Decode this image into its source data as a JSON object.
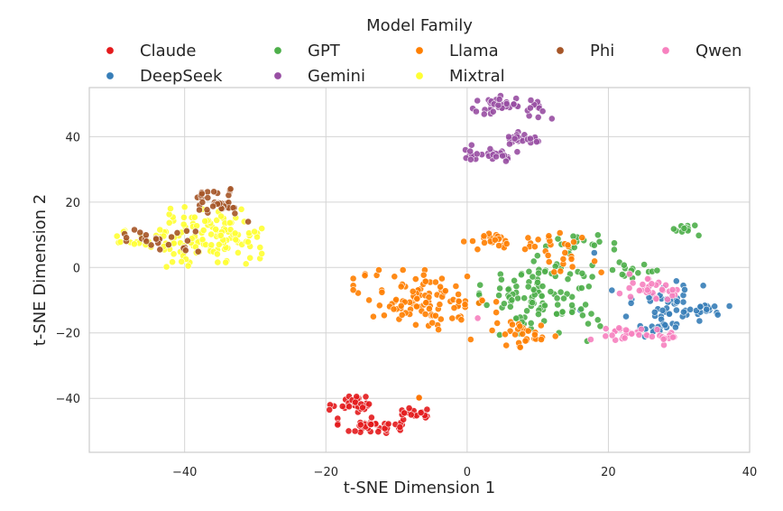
{
  "chart_data": {
    "type": "scatter",
    "title": "",
    "xlabel": "t-SNE Dimension 1",
    "ylabel": "t-SNE Dimension 2",
    "xlim": [
      -53.5,
      40
    ],
    "ylim": [
      -56.5,
      55
    ],
    "xticks": [
      -40,
      -20,
      0,
      20,
      40
    ],
    "yticks": [
      -40,
      -20,
      0,
      20,
      40
    ],
    "xtick_labels": [
      "−40",
      "−20",
      "0",
      "20",
      "40"
    ],
    "ytick_labels": [
      "−40",
      "−20",
      "0",
      "20",
      "40"
    ],
    "grid": true,
    "legend": {
      "title": "Model Family",
      "placement": "top"
    },
    "series": [
      {
        "name": "Claude",
        "color": "#e41a1c",
        "clusters": [
          {
            "cx": -16,
            "cy": -41.5,
            "sx": 1.6,
            "sy": 1.4,
            "n": 30
          },
          {
            "cx": -13.5,
            "cy": -48.5,
            "sx": 2.2,
            "sy": 1.2,
            "n": 40
          },
          {
            "cx": -7.5,
            "cy": -44.5,
            "sx": 1.4,
            "sy": 1.0,
            "n": 18
          }
        ],
        "points": [
          [
            -19.5,
            -43.5
          ],
          [
            -6.8,
            -39.8
          ],
          [
            -8.2,
            -43
          ]
        ]
      },
      {
        "name": "DeepSeek",
        "color": "#377eb8",
        "clusters": [
          {
            "cx": 28.5,
            "cy": -10.5,
            "sx": 2.4,
            "sy": 3.2,
            "n": 45
          },
          {
            "cx": 34.5,
            "cy": -12.5,
            "sx": 1.2,
            "sy": 0.9,
            "n": 14
          },
          {
            "cx": 27.5,
            "cy": -18.5,
            "sx": 2.0,
            "sy": 1.2,
            "n": 16
          }
        ],
        "points": [
          [
            18,
            4.5
          ],
          [
            20.5,
            -7
          ],
          [
            16,
            -13
          ],
          [
            22.5,
            -15
          ]
        ]
      },
      {
        "name": "GPT",
        "color": "#4daf4a",
        "clusters": [
          {
            "cx": 10.5,
            "cy": -8.5,
            "sx": 4.0,
            "sy": 5.5,
            "n": 110
          },
          {
            "cx": 16,
            "cy": 7,
            "sx": 2.2,
            "sy": 1.5,
            "n": 18
          },
          {
            "cx": 30.8,
            "cy": 12,
            "sx": 0.7,
            "sy": 0.8,
            "n": 12
          },
          {
            "cx": 23,
            "cy": -1,
            "sx": 2.4,
            "sy": 2.2,
            "n": 20
          }
        ],
        "points": [
          [
            32.8,
            9.8
          ],
          [
            17,
            -22.5
          ],
          [
            18.5,
            -16
          ],
          [
            13,
            -20
          ]
        ]
      },
      {
        "name": "Gemini",
        "color": "#984ea3",
        "clusters": [
          {
            "cx": 4.5,
            "cy": 49.5,
            "sx": 2.0,
            "sy": 1.6,
            "n": 30
          },
          {
            "cx": 9.5,
            "cy": 48.5,
            "sx": 1.0,
            "sy": 1.2,
            "n": 12
          },
          {
            "cx": 3,
            "cy": 35,
            "sx": 2.2,
            "sy": 1.1,
            "n": 28
          },
          {
            "cx": 8.5,
            "cy": 39.5,
            "sx": 1.6,
            "sy": 1.0,
            "n": 22
          }
        ],
        "points": [
          [
            12,
            45.5
          ],
          [
            0.5,
            33
          ],
          [
            5.5,
            32.5
          ]
        ]
      },
      {
        "name": "Llama",
        "color": "#ff7f00",
        "clusters": [
          {
            "cx": -6,
            "cy": -10,
            "sx": 4.6,
            "sy": 4.2,
            "n": 110
          },
          {
            "cx": 3.5,
            "cy": 8,
            "sx": 1.8,
            "sy": 1.5,
            "n": 22
          },
          {
            "cx": 8,
            "cy": -20,
            "sx": 2.4,
            "sy": 2.0,
            "n": 28
          },
          {
            "cx": 11,
            "cy": 7.5,
            "sx": 2.4,
            "sy": 1.6,
            "n": 16
          },
          {
            "cx": 14,
            "cy": 3,
            "sx": 2.2,
            "sy": 2.2,
            "n": 12
          }
        ],
        "points": [
          [
            -6.8,
            -39.8
          ],
          [
            10.5,
            -22
          ],
          [
            12.5,
            -21
          ],
          [
            0.5,
            -22
          ],
          [
            19,
            -1.5
          ]
        ]
      },
      {
        "name": "Mixtral",
        "color": "#ffff33",
        "clusters": [
          {
            "cx": -37,
            "cy": 9,
            "sx": 3.6,
            "sy": 4.0,
            "n": 110
          },
          {
            "cx": -46.5,
            "cy": 9,
            "sx": 1.6,
            "sy": 2.2,
            "n": 18
          },
          {
            "cx": -32,
            "cy": 10.5,
            "sx": 1.4,
            "sy": 2.0,
            "n": 14
          }
        ],
        "points": [
          [
            -39.5,
            0.5
          ],
          [
            -40,
            18.5
          ],
          [
            -42,
            18
          ]
        ]
      },
      {
        "name": "Phi",
        "color": "#a65628",
        "clusters": [
          {
            "cx": -35.5,
            "cy": 20,
            "sx": 2.2,
            "sy": 1.8,
            "n": 34
          },
          {
            "cx": -45,
            "cy": 9.5,
            "sx": 2.4,
            "sy": 1.6,
            "n": 16
          },
          {
            "cx": -40,
            "cy": 9,
            "sx": 1.6,
            "sy": 2.4,
            "n": 8
          }
        ],
        "points": [
          [
            -31,
            14
          ],
          [
            -43.5,
            5.5
          ],
          [
            -33.5,
            24
          ]
        ]
      },
      {
        "name": "Qwen",
        "color": "#f781bf",
        "clusters": [
          {
            "cx": 26,
            "cy": -7,
            "sx": 2.0,
            "sy": 1.6,
            "n": 30
          },
          {
            "cx": 23.5,
            "cy": -20,
            "sx": 2.6,
            "sy": 1.0,
            "n": 22
          },
          {
            "cx": 28,
            "cy": -21.5,
            "sx": 1.4,
            "sy": 1.0,
            "n": 12
          }
        ],
        "points": [
          [
            17.5,
            -22
          ],
          [
            23,
            -2
          ],
          [
            1.5,
            -15.5
          ],
          [
            21.5,
            -18.5
          ]
        ]
      }
    ]
  }
}
